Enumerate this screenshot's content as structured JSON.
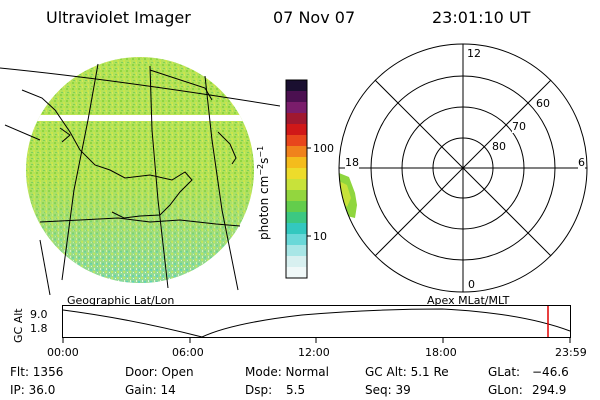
{
  "header": {
    "instrument": "Ultraviolet Imager",
    "date": "07 Nov 07",
    "time": "23:01:10 UT"
  },
  "colorbar": {
    "label": "photon cm^-2 s^-1",
    "label_main": "photon cm",
    "label_sup1": "−2",
    "label_s": "s",
    "label_sup2": "−1",
    "ticks": [
      "100",
      "10"
    ],
    "colors_top_to_bottom": [
      "#1a0f30",
      "#4b1050",
      "#7a1d6b",
      "#a0182f",
      "#d01818",
      "#e8461c",
      "#f0821c",
      "#f4bc1c",
      "#eddc2b",
      "#c8e23a",
      "#93d63e",
      "#63cd4c",
      "#3cc882",
      "#33c8bf",
      "#6ad8d8",
      "#a8e6e6",
      "#d8f0f0",
      "#f0f8f8"
    ]
  },
  "left_panel": {
    "label": "Geographic Lat/Lon"
  },
  "right_panel": {
    "label": "Apex MLat/MLT",
    "mlt_labels": [
      "12",
      "18",
      "6",
      "0"
    ],
    "lat_labels": [
      "60",
      "70",
      "80"
    ]
  },
  "timeline": {
    "ylabel": "GC Alt",
    "yticks": [
      "9.0",
      "1.8"
    ],
    "xticks": [
      "00:00",
      "06:00",
      "12:00",
      "18:00",
      "23:59"
    ]
  },
  "info": {
    "flt": "Flt: 1356",
    "door": "Door: Open",
    "mode": "Mode: Normal",
    "gcalt": "GC Alt: 5.1 Re",
    "glat_label": "GLat:",
    "glat_value": "−46.6",
    "ip": "IP: 36.0",
    "gain": "Gain: 14",
    "dsp_label": "Dsp:",
    "dsp_value": "5.5",
    "seq": "Seq: 39",
    "glon_label": "GLon:",
    "glon_value": "294.9"
  }
}
